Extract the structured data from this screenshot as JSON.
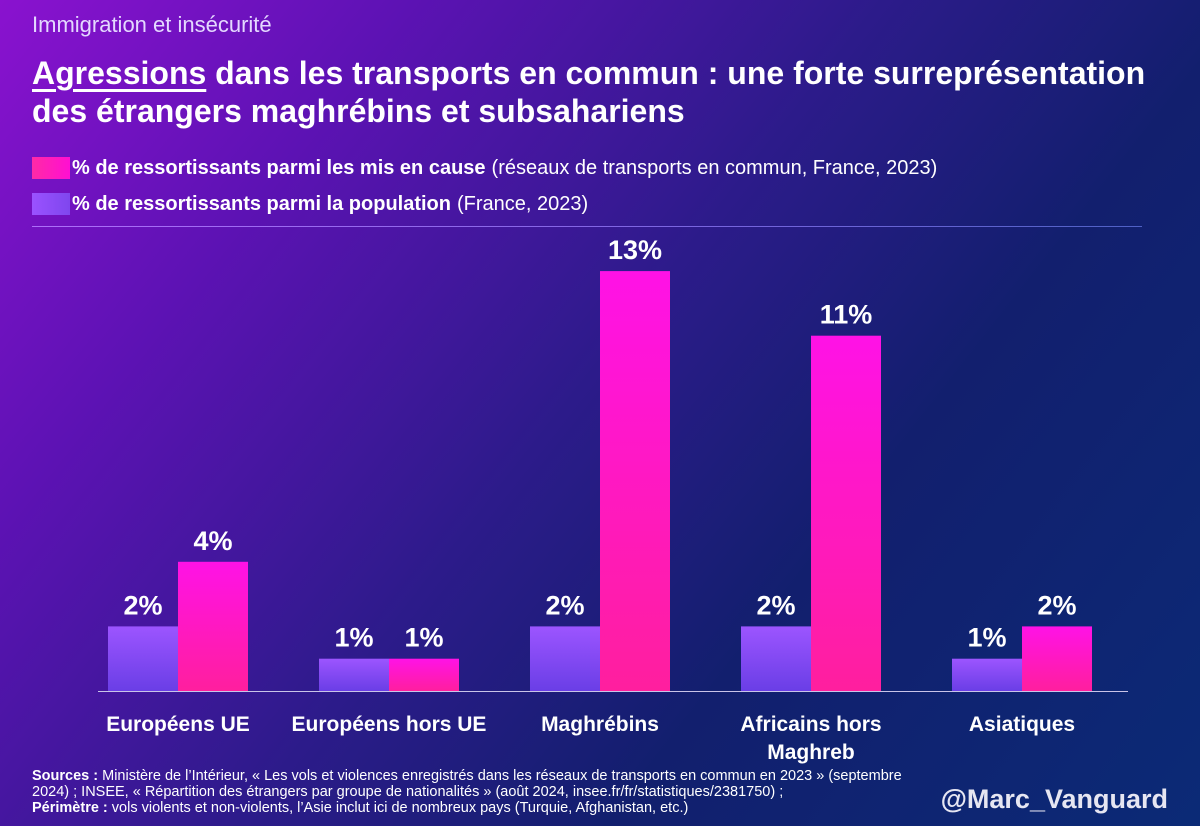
{
  "header": {
    "kicker": "Immigration et insécurité",
    "title_underlined": "Agressions",
    "title_rest": " dans les transports en commun : une forte surreprésentation des étrangers maghrébins et subsahariens"
  },
  "legend": {
    "items": [
      {
        "bold": "% de ressortissants parmi les mis en cause",
        "note": "(réseaux de transports en commun, France, 2023)",
        "color": "#ff1ec8"
      },
      {
        "bold": "% de ressortissants parmi la population",
        "note": "(France, 2023)",
        "color": "#8a4cf8"
      }
    ]
  },
  "chart_data": {
    "type": "bar",
    "title": "Agressions dans les transports en commun : une forte surreprésentation des étrangers maghrébins et subsahariens",
    "categories": [
      "Européens UE",
      "Européens hors UE",
      "Maghrébins",
      "Africains hors Maghreb",
      "Asiatiques"
    ],
    "series": [
      {
        "name": "% de ressortissants parmi la population",
        "values": [
          2,
          1,
          2,
          2,
          1
        ],
        "value_labels": [
          "2%",
          "1%",
          "2%",
          "2%",
          "1%"
        ],
        "color": "#8a4cf8"
      },
      {
        "name": "% de ressortissants parmi les mis en cause",
        "values": [
          4,
          1,
          13,
          11,
          2
        ],
        "value_labels": [
          "4%",
          "1%",
          "13%",
          "11%",
          "2%"
        ],
        "color": "#ff1ec8"
      }
    ],
    "ylim": [
      0,
      14
    ],
    "grid": false,
    "legend": "top-left"
  },
  "footer": {
    "sources_label": "Sources :",
    "sources_text": " Ministère de l’Intérieur, « Les vols et violences enregistrés dans les réseaux de transports en commun en 2023 » (septembre 2024) ; INSEE, « Répartition des étrangers par groupe de nationalités » (août 2024, insee.fr/fr/statistiques/2381750) ;",
    "perimetre_label": "Périmètre :",
    "perimetre_text": " vols violents et non-violents, l’Asie inclut ici de nombreux pays (Turquie, Afghanistan, etc.)",
    "handle": "@Marc_Vanguard"
  }
}
